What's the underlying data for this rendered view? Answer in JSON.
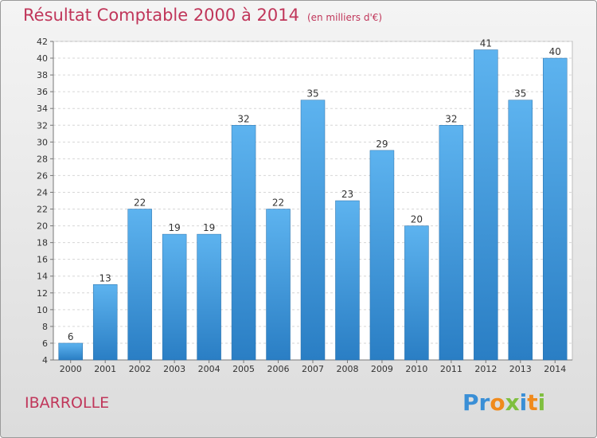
{
  "header": {
    "title": "Résultat Comptable 2000 à 2014",
    "subtitle": "(en milliers d'€)"
  },
  "footer": {
    "town": "IBARROLLE",
    "logo_parts": [
      "Pr",
      "o",
      "x",
      "i",
      "t",
      "i"
    ]
  },
  "colors": {
    "title": "#c0365a",
    "bar_top": "#5db3ef",
    "bar_bottom": "#2a7ec4"
  },
  "chart_data": {
    "type": "bar",
    "categories": [
      "2000",
      "2001",
      "2002",
      "2003",
      "2004",
      "2005",
      "2006",
      "2007",
      "2008",
      "2009",
      "2010",
      "2011",
      "2012",
      "2013",
      "2014"
    ],
    "values": [
      6,
      13,
      22,
      19,
      19,
      32,
      22,
      35,
      23,
      29,
      20,
      32,
      41,
      35,
      40
    ],
    "title": "Résultat Comptable 2000 à 2014",
    "subtitle": "(en milliers d'€)",
    "xlabel": "",
    "ylabel": "",
    "ylim": [
      4,
      42
    ],
    "yticks": [
      4,
      6,
      8,
      10,
      12,
      14,
      16,
      18,
      20,
      22,
      24,
      26,
      28,
      30,
      32,
      34,
      36,
      38,
      40,
      42
    ],
    "grid": true
  }
}
